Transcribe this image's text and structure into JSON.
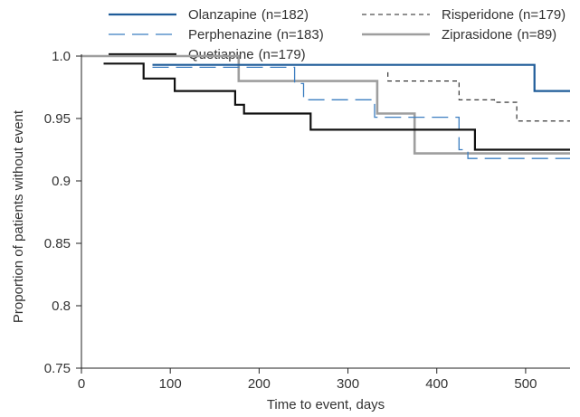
{
  "chart_data": {
    "type": "line",
    "step": true,
    "xlabel": "Time to event, days",
    "ylabel": "Proportion of patients without event",
    "xlim": [
      0,
      550
    ],
    "ylim": [
      0.75,
      1.0
    ],
    "xticks": [
      "0",
      "100",
      "200",
      "300",
      "400",
      "500"
    ],
    "yticks": [
      "0.75",
      "0.8",
      "0.85",
      "0.9",
      "0.95",
      "1.0"
    ],
    "grid": false,
    "legend_position": "top",
    "series": [
      {
        "name": "Olanzapine",
        "n_label": "(n=182)",
        "color": "#1f5c99",
        "dash": "solid",
        "points": [
          [
            80,
            0.993
          ],
          [
            510,
            0.993
          ],
          [
            510,
            0.972
          ],
          [
            550,
            0.972
          ]
        ]
      },
      {
        "name": "Perphenazine",
        "n_label": "(n=183)",
        "color": "#3b7dc0",
        "dash": "long-dash",
        "points": [
          [
            80,
            0.991
          ],
          [
            240,
            0.991
          ],
          [
            240,
            0.978
          ],
          [
            250,
            0.978
          ],
          [
            250,
            0.965
          ],
          [
            330,
            0.965
          ],
          [
            330,
            0.951
          ],
          [
            425,
            0.951
          ],
          [
            425,
            0.925
          ],
          [
            435,
            0.925
          ],
          [
            435,
            0.918
          ],
          [
            550,
            0.918
          ]
        ]
      },
      {
        "name": "Quetiapine",
        "n_label": "(n=179)",
        "color": "#111111",
        "dash": "solid",
        "points": [
          [
            25,
            0.994
          ],
          [
            70,
            0.994
          ],
          [
            70,
            0.982
          ],
          [
            105,
            0.982
          ],
          [
            105,
            0.972
          ],
          [
            173,
            0.972
          ],
          [
            173,
            0.961
          ],
          [
            183,
            0.961
          ],
          [
            183,
            0.954
          ],
          [
            258,
            0.954
          ],
          [
            258,
            0.941
          ],
          [
            443,
            0.941
          ],
          [
            443,
            0.925
          ],
          [
            550,
            0.925
          ]
        ]
      },
      {
        "name": "Risperidone",
        "n_label": "(n=179)",
        "color": "#222222",
        "dash": "short-dash",
        "points": [
          [
            345,
            0.987
          ],
          [
            345,
            0.98
          ],
          [
            425,
            0.98
          ],
          [
            425,
            0.965
          ],
          [
            465,
            0.965
          ],
          [
            465,
            0.963
          ],
          [
            490,
            0.963
          ],
          [
            490,
            0.948
          ],
          [
            550,
            0.948
          ]
        ]
      },
      {
        "name": "Ziprasidone",
        "n_label": "(n=89)",
        "color": "#9e9e9e",
        "dash": "solid",
        "points": [
          [
            0,
            1.0
          ],
          [
            177,
            1.0
          ],
          [
            177,
            0.98
          ],
          [
            333,
            0.98
          ],
          [
            333,
            0.954
          ],
          [
            375,
            0.954
          ],
          [
            375,
            0.922
          ],
          [
            550,
            0.922
          ]
        ]
      }
    ]
  }
}
